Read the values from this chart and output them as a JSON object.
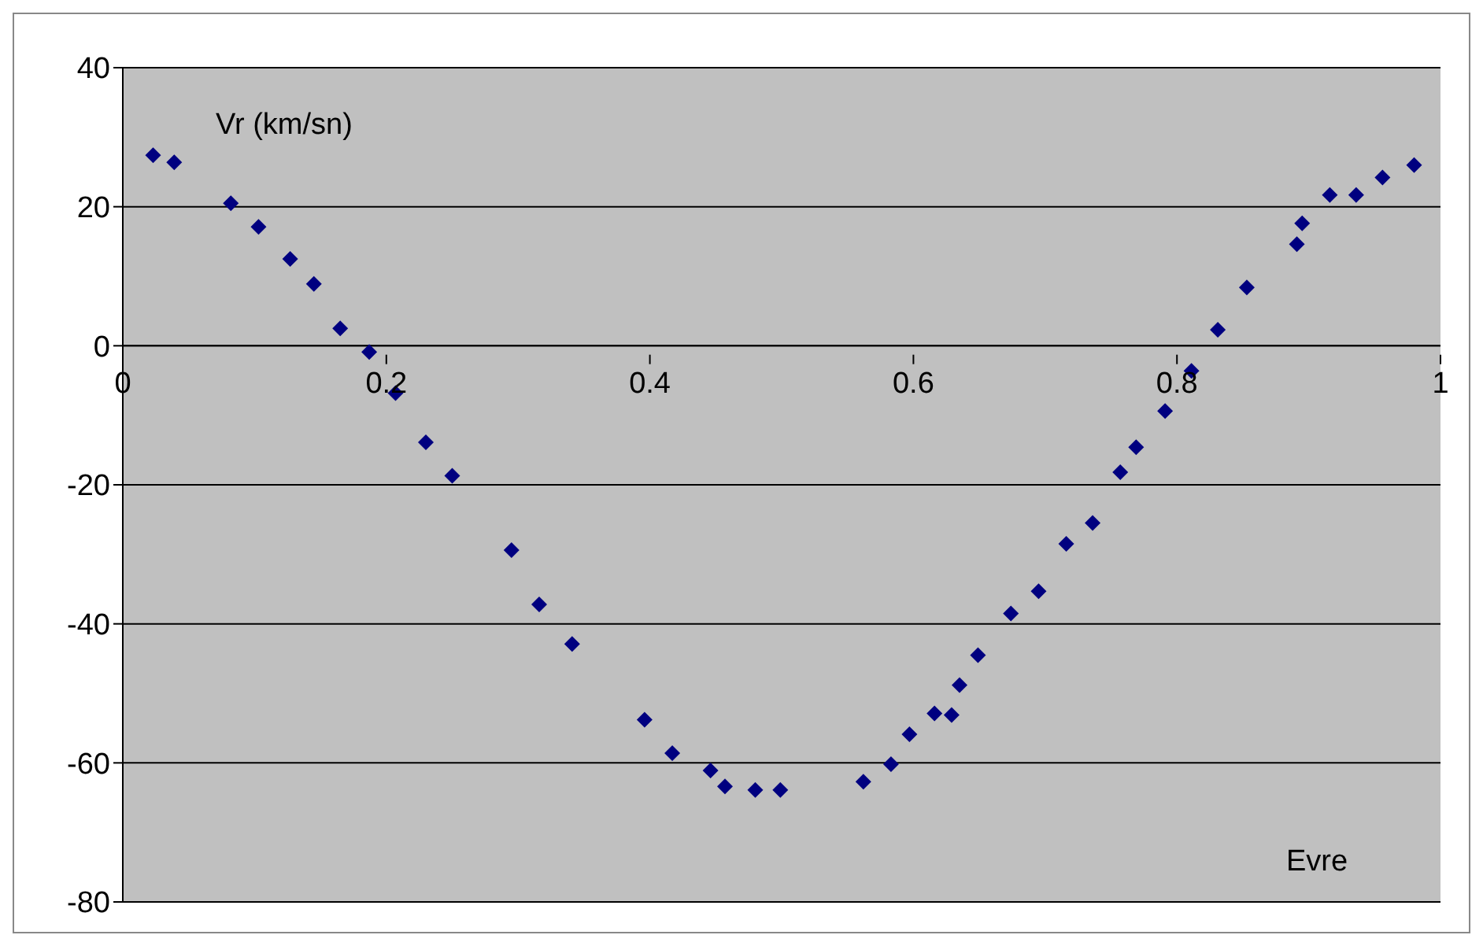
{
  "chart_data": {
    "type": "scatter",
    "xlabel": "Evre",
    "ylabel": "Vr (km/sn)",
    "xlim": [
      0,
      1
    ],
    "xticks": [
      0,
      0.2,
      0.4,
      0.6,
      0.8,
      1
    ],
    "ylim": [
      -80,
      40
    ],
    "yticks": [
      -80,
      -60,
      -40,
      -20,
      0,
      20,
      40
    ],
    "grid": "y",
    "marker": "diamond",
    "series": [
      {
        "color": "#000080",
        "x": [
          0.023,
          0.039,
          0.082,
          0.103,
          0.127,
          0.145,
          0.165,
          0.187,
          0.207,
          0.23,
          0.25,
          0.295,
          0.316,
          0.341,
          0.396,
          0.417,
          0.446,
          0.457,
          0.48,
          0.499,
          0.562,
          0.583,
          0.597,
          0.616,
          0.629,
          0.635,
          0.649,
          0.674,
          0.695,
          0.716,
          0.736,
          0.757,
          0.769,
          0.791,
          0.811,
          0.831,
          0.853,
          0.891,
          0.895,
          0.916,
          0.936,
          0.956,
          0.98
        ],
        "values": [
          27.4,
          26.4,
          20.5,
          17.1,
          12.5,
          8.9,
          2.5,
          -0.9,
          -6.8,
          -13.9,
          -18.7,
          -29.4,
          -37.2,
          -42.9,
          -53.8,
          -58.6,
          -61.1,
          -63.4,
          -63.9,
          -63.9,
          -62.7,
          -60.2,
          -55.9,
          -52.9,
          -53.1,
          -48.8,
          -44.5,
          -38.5,
          -35.3,
          -28.5,
          -25.5,
          -18.2,
          -14.6,
          -9.4,
          -3.6,
          2.3,
          8.4,
          14.6,
          17.6,
          21.7,
          21.7,
          24.2,
          26.0
        ]
      }
    ]
  }
}
